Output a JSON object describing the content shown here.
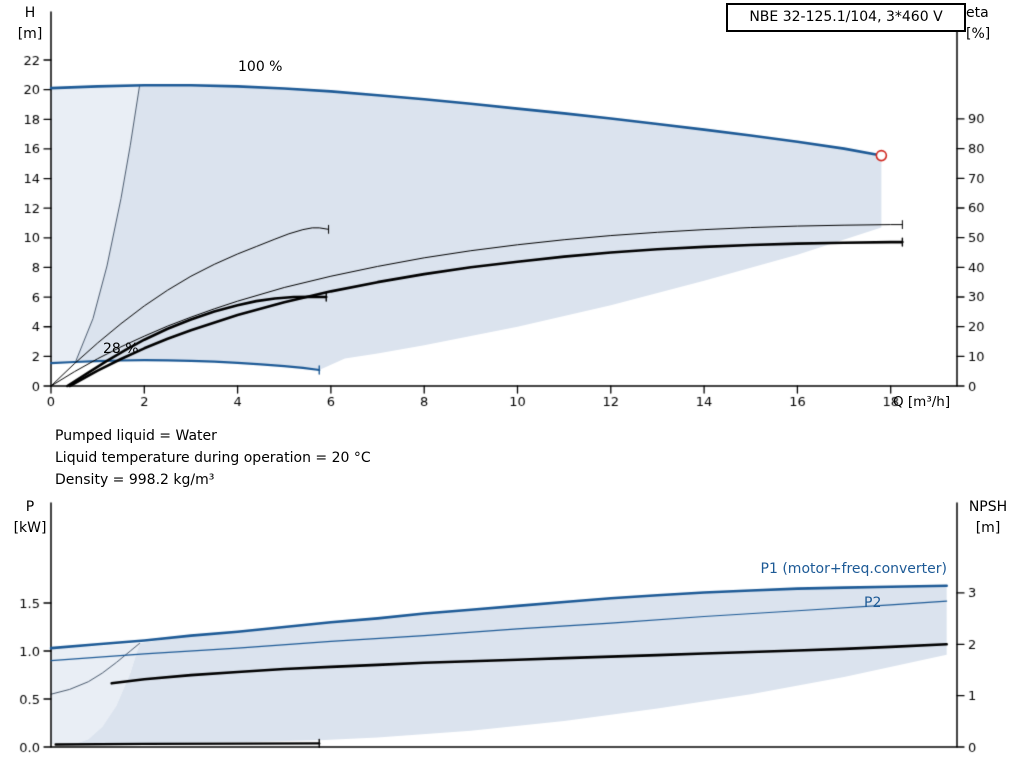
{
  "colors": {
    "blue": "#1d5a96",
    "black": "#000000",
    "red": "#d02820",
    "envelope_main": "#dbe3ee",
    "envelope_light": "#e9eef5",
    "boundary": "#4a5a6e"
  },
  "title_box": {
    "text": "NBE 32-125.1/104, 3*460 V"
  },
  "info": {
    "lines": [
      "Pumped liquid = Water",
      "Liquid temperature during operation = 20 °C",
      "Density = 998.2 kg/m³"
    ]
  },
  "top_chart": {
    "y_left": {
      "label_lines": [
        "H",
        "[m]"
      ],
      "ticks": [
        0,
        2,
        4,
        6,
        8,
        10,
        12,
        14,
        16,
        18,
        20,
        22
      ]
    },
    "y_right": {
      "label_lines": [
        "eta",
        "[%]"
      ],
      "ticks": [
        0,
        10,
        20,
        30,
        40,
        50,
        60,
        70,
        80,
        90
      ]
    },
    "x": {
      "label": "Q [m³/h]",
      "ticks": [
        0,
        2,
        4,
        6,
        8,
        10,
        12,
        14,
        16,
        18
      ]
    },
    "curve_labels": {
      "speed_100": "100 %",
      "speed_28": "28 %"
    }
  },
  "bottom_chart": {
    "y_left": {
      "label_lines": [
        "P",
        "[kW]"
      ],
      "ticks": [
        0,
        0.5,
        1,
        1.5
      ],
      "tick_labels": [
        "0.0",
        "0.5",
        "1.0",
        "1.5"
      ]
    },
    "y_right": {
      "label_lines": [
        "NPSH",
        "[m]"
      ],
      "ticks": [
        0,
        1,
        2,
        3
      ],
      "tick_labels": [
        "0",
        "1",
        "2",
        "3"
      ]
    },
    "curve_labels": {
      "p1": "P1 (motor+freq.converter)",
      "p2": "P2"
    }
  },
  "chart_data": [
    {
      "type": "line",
      "title": "NBE 32-125.1/104, 3*460 V",
      "xlabel": "Q [m³/h]",
      "ylabel_left": "H [m]",
      "ylabel_right": "eta [%]",
      "xlim": [
        0,
        19.4
      ],
      "ylim_left": [
        0,
        25.4
      ],
      "ylim_right": [
        0,
        126
      ],
      "grid": false,
      "duty_point": {
        "q": 17.8,
        "h": 15.55
      },
      "series": [
        {
          "name": "head-100pct",
          "axis": "left",
          "color": "blue",
          "width": 2.6,
          "end_tick": false,
          "points": [
            [
              0,
              20.1
            ],
            [
              1,
              20.22
            ],
            [
              2,
              20.3
            ],
            [
              3,
              20.3
            ],
            [
              4,
              20.22
            ],
            [
              5,
              20.08
            ],
            [
              6,
              19.88
            ],
            [
              7,
              19.62
            ],
            [
              8,
              19.35
            ],
            [
              9,
              19.05
            ],
            [
              10,
              18.72
            ],
            [
              11,
              18.4
            ],
            [
              12,
              18.05
            ],
            [
              13,
              17.68
            ],
            [
              14,
              17.3
            ],
            [
              15,
              16.9
            ],
            [
              16,
              16.48
            ],
            [
              17,
              16.02
            ],
            [
              17.8,
              15.55
            ]
          ]
        },
        {
          "name": "head-28pct",
          "axis": "left",
          "color": "blue",
          "width": 2.2,
          "end_tick": true,
          "points": [
            [
              0,
              1.55
            ],
            [
              0.5,
              1.62
            ],
            [
              1,
              1.68
            ],
            [
              1.5,
              1.72
            ],
            [
              2,
              1.74
            ],
            [
              2.5,
              1.73
            ],
            [
              3,
              1.7
            ],
            [
              3.5,
              1.64
            ],
            [
              4,
              1.56
            ],
            [
              4.5,
              1.46
            ],
            [
              5,
              1.34
            ],
            [
              5.4,
              1.22
            ],
            [
              5.75,
              1.08
            ]
          ]
        },
        {
          "name": "eta-pump-100pct",
          "axis": "right",
          "color": "black",
          "width": 1,
          "end_tick": true,
          "points": [
            [
              0,
              0
            ],
            [
              0.5,
              4.8
            ],
            [
              1,
              9.2
            ],
            [
              1.5,
              13.2
            ],
            [
              2,
              16.8
            ],
            [
              2.5,
              20.2
            ],
            [
              3,
              23.2
            ],
            [
              3.5,
              26
            ],
            [
              4,
              28.6
            ],
            [
              5,
              33.2
            ],
            [
              6,
              37
            ],
            [
              7,
              40.3
            ],
            [
              8,
              43.2
            ],
            [
              9,
              45.6
            ],
            [
              10,
              47.6
            ],
            [
              11,
              49.3
            ],
            [
              12,
              50.7
            ],
            [
              13,
              51.8
            ],
            [
              14,
              52.7
            ],
            [
              15,
              53.4
            ],
            [
              16,
              53.9
            ],
            [
              17,
              54.2
            ],
            [
              18,
              54.4
            ],
            [
              18.25,
              54.4
            ]
          ]
        },
        {
          "name": "eta-pump-motor-100pct",
          "axis": "right",
          "color": "black",
          "width": 2.6,
          "end_tick": true,
          "points": [
            [
              0.4,
              0
            ],
            [
              1,
              5.2
            ],
            [
              1.5,
              9.1
            ],
            [
              2,
              12.7
            ],
            [
              2.5,
              15.9
            ],
            [
              3,
              18.8
            ],
            [
              4,
              23.9
            ],
            [
              5,
              28.2
            ],
            [
              6,
              31.9
            ],
            [
              7,
              35
            ],
            [
              8,
              37.7
            ],
            [
              9,
              40
            ],
            [
              10,
              41.9
            ],
            [
              11,
              43.6
            ],
            [
              12,
              45
            ],
            [
              13,
              46.1
            ],
            [
              14,
              46.9
            ],
            [
              15,
              47.5
            ],
            [
              16,
              48
            ],
            [
              17,
              48.3
            ],
            [
              18,
              48.5
            ],
            [
              18.25,
              48.5
            ]
          ]
        },
        {
          "name": "eta-pump-partload",
          "axis": "right",
          "color": "black",
          "width": 1,
          "end_tick": true,
          "points": [
            [
              0,
              0
            ],
            [
              0.5,
              7.5
            ],
            [
              1,
              14.5
            ],
            [
              1.5,
              21
            ],
            [
              2,
              27
            ],
            [
              2.5,
              32.3
            ],
            [
              3,
              37
            ],
            [
              3.5,
              41
            ],
            [
              4,
              44.5
            ],
            [
              4.4,
              47
            ],
            [
              4.8,
              49.5
            ],
            [
              5.1,
              51.3
            ],
            [
              5.4,
              52.7
            ],
            [
              5.6,
              53.3
            ],
            [
              5.75,
              53.3
            ],
            [
              5.95,
              52.8
            ]
          ]
        },
        {
          "name": "eta-pump-motor-partload",
          "axis": "right",
          "color": "black",
          "width": 2.6,
          "end_tick": true,
          "points": [
            [
              0.35,
              0
            ],
            [
              0.8,
              4.5
            ],
            [
              1.2,
              8.5
            ],
            [
              1.6,
              12.2
            ],
            [
              2,
              15.6
            ],
            [
              2.5,
              19.3
            ],
            [
              3,
              22.4
            ],
            [
              3.5,
              25.1
            ],
            [
              4,
              27.2
            ],
            [
              4.4,
              28.6
            ],
            [
              4.8,
              29.5
            ],
            [
              5.2,
              30
            ],
            [
              5.6,
              30.1
            ],
            [
              5.9,
              30
            ]
          ]
        }
      ],
      "envelope_main": [
        [
          0.53,
          1.66
        ],
        [
          0.9,
          4.55
        ],
        [
          1.2,
          8.1
        ],
        [
          1.5,
          12.65
        ],
        [
          1.7,
          16.25
        ],
        [
          1.9,
          20.3
        ],
        [
          3,
          20.3
        ],
        [
          5,
          20.08
        ],
        [
          7,
          19.62
        ],
        [
          9,
          19.05
        ],
        [
          11,
          18.4
        ],
        [
          13,
          17.68
        ],
        [
          15,
          16.9
        ],
        [
          17,
          16.02
        ],
        [
          17.8,
          15.55
        ],
        [
          17.8,
          10.7
        ],
        [
          16,
          8.85
        ],
        [
          14,
          7.1
        ],
        [
          12,
          5.45
        ],
        [
          10,
          4.0
        ],
        [
          8,
          2.75
        ],
        [
          7,
          2.2
        ],
        [
          6.3,
          1.85
        ],
        [
          5.75,
          1.08
        ],
        [
          5,
          1.34
        ],
        [
          4,
          1.56
        ],
        [
          3,
          1.7
        ],
        [
          2,
          1.74
        ],
        [
          1,
          1.68
        ]
      ],
      "envelope_light": [
        [
          0,
          1.55
        ],
        [
          0.53,
          1.66
        ],
        [
          0.9,
          4.55
        ],
        [
          1.2,
          8.1
        ],
        [
          1.5,
          12.65
        ],
        [
          1.7,
          16.25
        ],
        [
          1.9,
          20.3
        ],
        [
          1,
          20.22
        ],
        [
          0,
          20.1
        ]
      ],
      "min_flow_boundary": [
        [
          0.53,
          1.66
        ],
        [
          0.9,
          4.55
        ],
        [
          1.2,
          8.1
        ],
        [
          1.5,
          12.65
        ],
        [
          1.7,
          16.25
        ],
        [
          1.9,
          20.3
        ]
      ]
    },
    {
      "type": "line",
      "xlabel": "Q [m³/h]",
      "ylabel_left": "P [kW]",
      "ylabel_right": "NPSH [m]",
      "xlim": [
        0,
        19.4
      ],
      "ylim_left": [
        0,
        2.54
      ],
      "ylim_right": [
        0,
        4.75
      ],
      "grid": false,
      "series": [
        {
          "name": "p1-motor-freq-converter",
          "axis": "left",
          "color": "blue",
          "width": 2.6,
          "end_tick": false,
          "points": [
            [
              0,
              1.03
            ],
            [
              1,
              1.07
            ],
            [
              2,
              1.11
            ],
            [
              3,
              1.16
            ],
            [
              4,
              1.2
            ],
            [
              5,
              1.25
            ],
            [
              6,
              1.3
            ],
            [
              7,
              1.34
            ],
            [
              8,
              1.39
            ],
            [
              9,
              1.43
            ],
            [
              10,
              1.47
            ],
            [
              11,
              1.51
            ],
            [
              12,
              1.55
            ],
            [
              13,
              1.58
            ],
            [
              14,
              1.61
            ],
            [
              15,
              1.63
            ],
            [
              16,
              1.65
            ],
            [
              17,
              1.66
            ],
            [
              18,
              1.67
            ],
            [
              19.2,
              1.68
            ]
          ]
        },
        {
          "name": "p2",
          "axis": "left",
          "color": "blue",
          "width": 1.1,
          "end_tick": false,
          "points": [
            [
              0,
              0.9
            ],
            [
              2,
              0.97
            ],
            [
              4,
              1.03
            ],
            [
              6,
              1.1
            ],
            [
              8,
              1.16
            ],
            [
              10,
              1.23
            ],
            [
              12,
              1.29
            ],
            [
              14,
              1.36
            ],
            [
              16,
              1.42
            ],
            [
              18,
              1.48
            ],
            [
              19.2,
              1.52
            ]
          ]
        },
        {
          "name": "npsh",
          "axis": "right",
          "color": "black",
          "width": 2.6,
          "end_tick": false,
          "points": [
            [
              1.3,
              1.24
            ],
            [
              2,
              1.32
            ],
            [
              3,
              1.4
            ],
            [
              4,
              1.46
            ],
            [
              5,
              1.52
            ],
            [
              6,
              1.56
            ],
            [
              7,
              1.6
            ],
            [
              8,
              1.64
            ],
            [
              9,
              1.67
            ],
            [
              10,
              1.7
            ],
            [
              11,
              1.73
            ],
            [
              12,
              1.76
            ],
            [
              13,
              1.79
            ],
            [
              14,
              1.82
            ],
            [
              15,
              1.85
            ],
            [
              16,
              1.88
            ],
            [
              17,
              1.91
            ],
            [
              18,
              1.95
            ],
            [
              19.2,
              2.0
            ]
          ]
        },
        {
          "name": "npsh-28pct",
          "axis": "right",
          "color": "black",
          "width": 2.4,
          "end_tick": true,
          "points": [
            [
              0.1,
              0.05
            ],
            [
              2,
              0.06
            ],
            [
              4,
              0.065
            ],
            [
              5.75,
              0.07
            ]
          ]
        }
      ],
      "envelope_main": [
        [
          0.5,
          0.03
        ],
        [
          0.8,
          0.08
        ],
        [
          1.1,
          0.21
        ],
        [
          1.4,
          0.43
        ],
        [
          1.7,
          0.77
        ],
        [
          1.9,
          1.08
        ],
        [
          3,
          1.16
        ],
        [
          5,
          1.25
        ],
        [
          7,
          1.34
        ],
        [
          9,
          1.43
        ],
        [
          11,
          1.51
        ],
        [
          13,
          1.58
        ],
        [
          15,
          1.63
        ],
        [
          17,
          1.66
        ],
        [
          19.2,
          1.68
        ],
        [
          19.2,
          0.96
        ],
        [
          17,
          0.73
        ],
        [
          15,
          0.55
        ],
        [
          13,
          0.4
        ],
        [
          11,
          0.27
        ],
        [
          9,
          0.17
        ],
        [
          7,
          0.1
        ],
        [
          5.75,
          0.07
        ],
        [
          4,
          0.05
        ],
        [
          3,
          0.045
        ],
        [
          2,
          0.04
        ],
        [
          1,
          0.03
        ]
      ],
      "envelope_light": [
        [
          0,
          0.03
        ],
        [
          0.5,
          0.03
        ],
        [
          0.8,
          0.08
        ],
        [
          1.1,
          0.21
        ],
        [
          1.4,
          0.43
        ],
        [
          1.7,
          0.77
        ],
        [
          1.9,
          1.08
        ],
        [
          1,
          1.05
        ],
        [
          0,
          1.03
        ]
      ],
      "min_flow_boundary": [
        [
          0,
          0.55
        ],
        [
          0.4,
          0.6
        ],
        [
          0.8,
          0.68
        ],
        [
          1.1,
          0.77
        ],
        [
          1.4,
          0.88
        ],
        [
          1.7,
          1.0
        ],
        [
          1.9,
          1.08
        ]
      ]
    }
  ]
}
